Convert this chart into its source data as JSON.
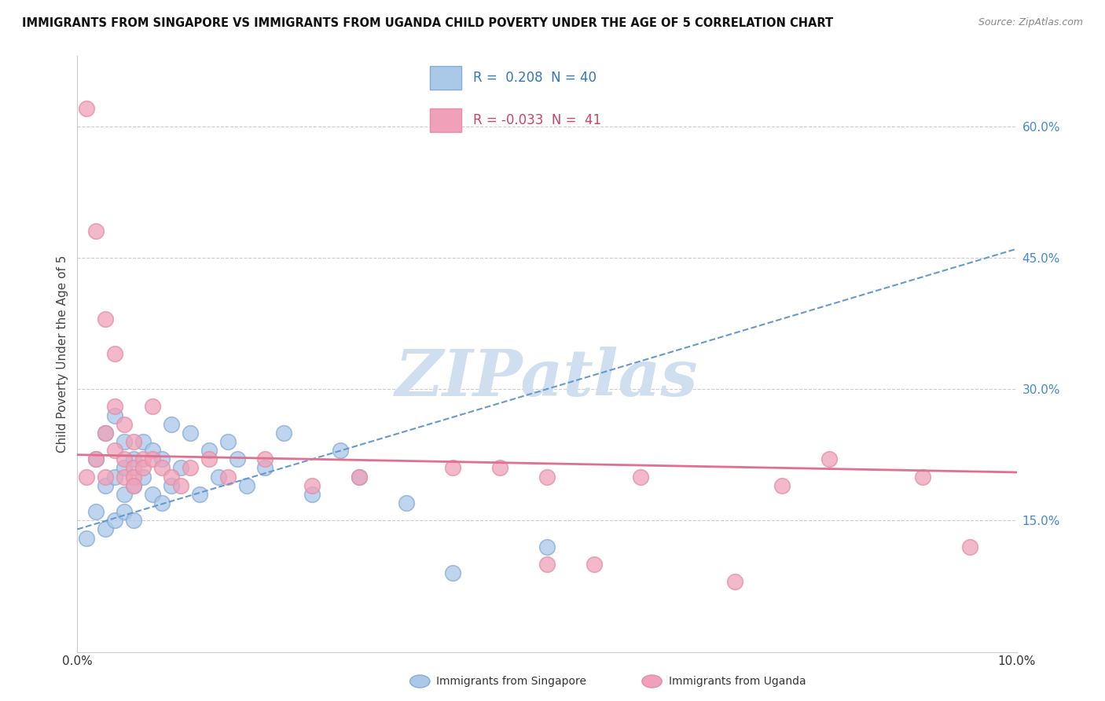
{
  "title": "IMMIGRANTS FROM SINGAPORE VS IMMIGRANTS FROM UGANDA CHILD POVERTY UNDER THE AGE OF 5 CORRELATION CHART",
  "source": "Source: ZipAtlas.com",
  "ylabel": "Child Poverty Under the Age of 5",
  "y_ticks": [
    "15.0%",
    "30.0%",
    "45.0%",
    "60.0%"
  ],
  "y_tick_vals": [
    0.15,
    0.3,
    0.45,
    0.6
  ],
  "x_min": 0.0,
  "x_max": 0.1,
  "y_min": 0.0,
  "y_max": 0.68,
  "legend_r_singapore": "0.208",
  "legend_n_singapore": "40",
  "legend_r_uganda": "-0.033",
  "legend_n_uganda": "41",
  "color_singapore": "#aac8e8",
  "color_uganda": "#f0a0b8",
  "trendline_singapore_color": "#6699cc",
  "trendline_uganda_color": "#e07090",
  "watermark_text": "ZIPatlas",
  "watermark_color": "#d0dff0",
  "sg_trend_x0": 0.0,
  "sg_trend_y0": 0.14,
  "sg_trend_x1": 0.1,
  "sg_trend_y1": 0.46,
  "ug_trend_x0": 0.0,
  "ug_trend_y0": 0.225,
  "ug_trend_x1": 0.1,
  "ug_trend_y1": 0.205,
  "singapore_x": [
    0.001,
    0.002,
    0.002,
    0.003,
    0.003,
    0.003,
    0.004,
    0.004,
    0.004,
    0.005,
    0.005,
    0.005,
    0.005,
    0.006,
    0.006,
    0.006,
    0.007,
    0.007,
    0.008,
    0.008,
    0.009,
    0.009,
    0.01,
    0.01,
    0.011,
    0.012,
    0.013,
    0.014,
    0.015,
    0.016,
    0.017,
    0.018,
    0.02,
    0.022,
    0.025,
    0.028,
    0.03,
    0.035,
    0.04,
    0.05
  ],
  "singapore_y": [
    0.13,
    0.16,
    0.22,
    0.14,
    0.19,
    0.25,
    0.15,
    0.2,
    0.27,
    0.16,
    0.21,
    0.24,
    0.18,
    0.15,
    0.22,
    0.19,
    0.24,
    0.2,
    0.18,
    0.23,
    0.17,
    0.22,
    0.19,
    0.26,
    0.21,
    0.25,
    0.18,
    0.23,
    0.2,
    0.24,
    0.22,
    0.19,
    0.21,
    0.25,
    0.18,
    0.23,
    0.2,
    0.17,
    0.09,
    0.12
  ],
  "uganda_x": [
    0.001,
    0.001,
    0.002,
    0.002,
    0.003,
    0.003,
    0.003,
    0.004,
    0.004,
    0.004,
    0.005,
    0.005,
    0.005,
    0.006,
    0.006,
    0.006,
    0.006,
    0.007,
    0.007,
    0.008,
    0.008,
    0.009,
    0.01,
    0.011,
    0.012,
    0.014,
    0.016,
    0.02,
    0.025,
    0.03,
    0.04,
    0.05,
    0.06,
    0.07,
    0.08,
    0.09,
    0.095,
    0.05,
    0.055,
    0.075,
    0.045
  ],
  "uganda_y": [
    0.62,
    0.2,
    0.48,
    0.22,
    0.38,
    0.25,
    0.2,
    0.34,
    0.28,
    0.23,
    0.26,
    0.22,
    0.2,
    0.24,
    0.21,
    0.2,
    0.19,
    0.22,
    0.21,
    0.28,
    0.22,
    0.21,
    0.2,
    0.19,
    0.21,
    0.22,
    0.2,
    0.22,
    0.19,
    0.2,
    0.21,
    0.1,
    0.2,
    0.08,
    0.22,
    0.2,
    0.12,
    0.2,
    0.1,
    0.19,
    0.21
  ]
}
